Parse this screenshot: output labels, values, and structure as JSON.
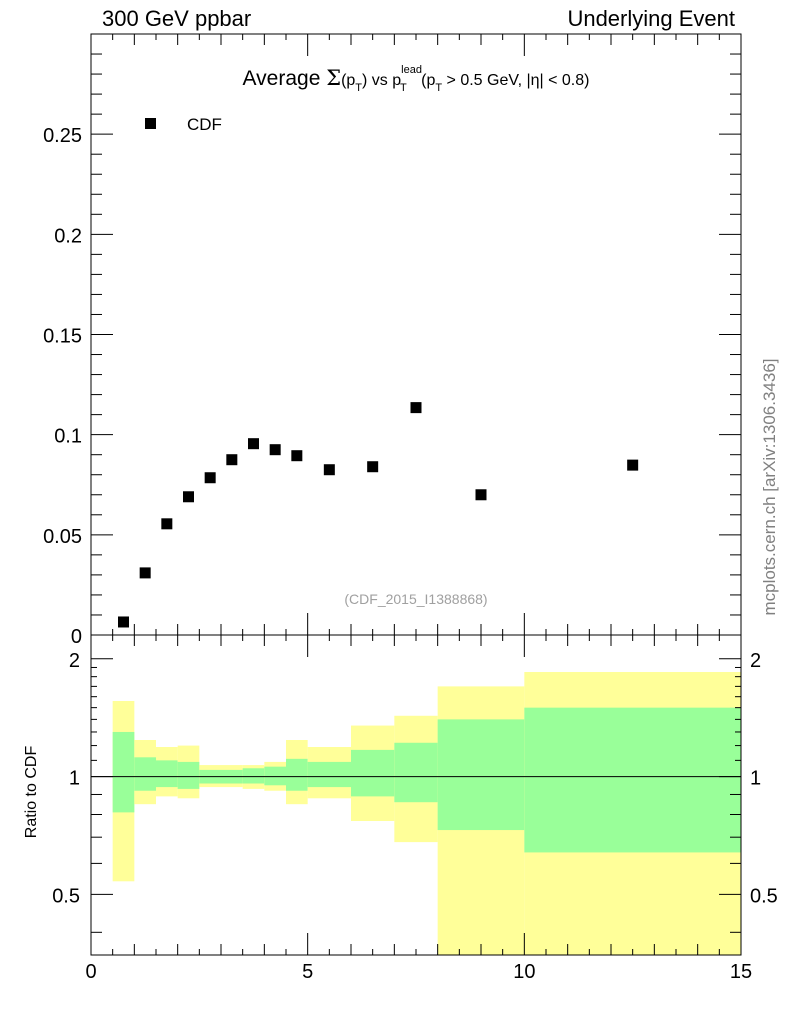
{
  "header": {
    "left": "300 GeV ppbar",
    "right": "Underlying Event"
  },
  "side_label": "mcplots.cern.ch [arXiv:1306.3436]",
  "chart_data": {
    "type": "scatter",
    "title": {
      "prefix": "Average ",
      "sigma": "Σ",
      "pt_open": "(p",
      "sub_T": "T",
      "pt_close": ")",
      "vs": " vs p",
      "sup_lead": "lead",
      "sub_T2": "T",
      "cut_open": " (p",
      "sub_T3": "T",
      "cut_rest": " > 0.5 GeV, |η| < 0.8)"
    },
    "watermark": "(CDF_2015_I1388868)",
    "legend": {
      "label": "CDF",
      "placement": "top-left"
    },
    "xlim": [
      0,
      15
    ],
    "x_ticks": [
      "0",
      "5",
      "10",
      "15"
    ],
    "main": {
      "ylim": [
        0,
        0.3
      ],
      "y_ticks": [
        "0",
        "0.05",
        "0.1",
        "0.15",
        "0.2",
        "0.25"
      ],
      "series": [
        {
          "name": "CDF",
          "x": [
            0.75,
            1.25,
            1.75,
            2.25,
            2.75,
            3.25,
            3.75,
            4.25,
            4.75,
            5.5,
            6.5,
            7.5,
            9.0,
            12.5
          ],
          "y": [
            0.0065,
            0.031,
            0.0555,
            0.069,
            0.0785,
            0.0875,
            0.0955,
            0.0925,
            0.0895,
            0.0825,
            0.084,
            0.1135,
            0.07,
            0.0848
          ]
        }
      ]
    },
    "ratio": {
      "ylabel": "Ratio to CDF",
      "ylim": [
        0.35,
        2.3
      ],
      "y_ticks": [
        "0.5",
        "1",
        "2"
      ],
      "bins": [
        {
          "lo": 0.5,
          "hi": 1.0,
          "g": [
            0.81,
            1.3
          ],
          "y": [
            0.54,
            1.56
          ]
        },
        {
          "lo": 1.0,
          "hi": 1.5,
          "g": [
            0.92,
            1.12
          ],
          "y": [
            0.85,
            1.24
          ]
        },
        {
          "lo": 1.5,
          "hi": 2.0,
          "g": [
            0.94,
            1.1
          ],
          "y": [
            0.89,
            1.19
          ]
        },
        {
          "lo": 2.0,
          "hi": 2.5,
          "g": [
            0.93,
            1.09
          ],
          "y": [
            0.88,
            1.2
          ]
        },
        {
          "lo": 2.5,
          "hi": 3.0,
          "g": [
            0.96,
            1.04
          ],
          "y": [
            0.94,
            1.07
          ]
        },
        {
          "lo": 3.0,
          "hi": 3.5,
          "g": [
            0.96,
            1.04
          ],
          "y": [
            0.94,
            1.07
          ]
        },
        {
          "lo": 3.5,
          "hi": 4.0,
          "g": [
            0.96,
            1.05
          ],
          "y": [
            0.93,
            1.07
          ]
        },
        {
          "lo": 4.0,
          "hi": 4.5,
          "g": [
            0.95,
            1.06
          ],
          "y": [
            0.92,
            1.09
          ]
        },
        {
          "lo": 4.5,
          "hi": 5.0,
          "g": [
            0.92,
            1.11
          ],
          "y": [
            0.85,
            1.24
          ]
        },
        {
          "lo": 5.0,
          "hi": 6.0,
          "g": [
            0.94,
            1.09
          ],
          "y": [
            0.88,
            1.19
          ]
        },
        {
          "lo": 6.0,
          "hi": 7.0,
          "g": [
            0.89,
            1.17
          ],
          "y": [
            0.77,
            1.35
          ]
        },
        {
          "lo": 7.0,
          "hi": 8.0,
          "g": [
            0.86,
            1.22
          ],
          "y": [
            0.68,
            1.43
          ]
        },
        {
          "lo": 8.0,
          "hi": 10.0,
          "g": [
            0.73,
            1.4
          ],
          "y": [
            0.35,
            1.7
          ]
        },
        {
          "lo": 10.0,
          "hi": 15.0,
          "g": [
            0.64,
            1.5
          ],
          "y": [
            0.35,
            1.85
          ]
        }
      ]
    },
    "colors": {
      "green_band": "#99ff99",
      "yellow_band": "#ffff99",
      "marker": "#000000"
    }
  }
}
